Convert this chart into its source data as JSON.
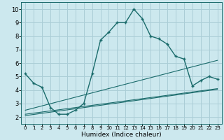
{
  "title": "",
  "xlabel": "Humidex (Indice chaleur)",
  "ylabel": "",
  "bg_color": "#cce8ee",
  "grid_color": "#aacdd6",
  "line_color": "#1a6b6b",
  "x_ticks": [
    0,
    1,
    2,
    3,
    4,
    5,
    6,
    7,
    8,
    9,
    10,
    11,
    12,
    13,
    14,
    15,
    16,
    17,
    18,
    19,
    20,
    21,
    22,
    23
  ],
  "y_ticks": [
    2,
    3,
    4,
    5,
    6,
    7,
    8,
    9,
    10
  ],
  "xlim": [
    -0.5,
    23.5
  ],
  "ylim": [
    1.5,
    10.5
  ],
  "series1_x": [
    0,
    1,
    2,
    3,
    4,
    5,
    6,
    7,
    8,
    9,
    10,
    11,
    12,
    13,
    14,
    15,
    16,
    17,
    18,
    19,
    20,
    21,
    22,
    23
  ],
  "series1_y": [
    5.2,
    4.5,
    4.2,
    2.7,
    2.2,
    2.2,
    2.5,
    3.0,
    5.2,
    7.7,
    8.3,
    9.0,
    9.0,
    10.0,
    9.3,
    8.0,
    7.8,
    7.4,
    6.5,
    6.3,
    4.3,
    4.7,
    5.0,
    4.8
  ],
  "series2_x": [
    0,
    23
  ],
  "series2_y": [
    2.2,
    4.1
  ],
  "series3_x": [
    0,
    23
  ],
  "series3_y": [
    2.5,
    6.2
  ],
  "series4_x": [
    0,
    23
  ],
  "series4_y": [
    2.1,
    4.05
  ],
  "marker": "+",
  "markersize": 3.5,
  "linewidth_main": 1.0,
  "linewidth_ref": 0.8,
  "xlabel_fontsize": 6.5,
  "tick_fontsize_x": 5.0,
  "tick_fontsize_y": 6.0
}
